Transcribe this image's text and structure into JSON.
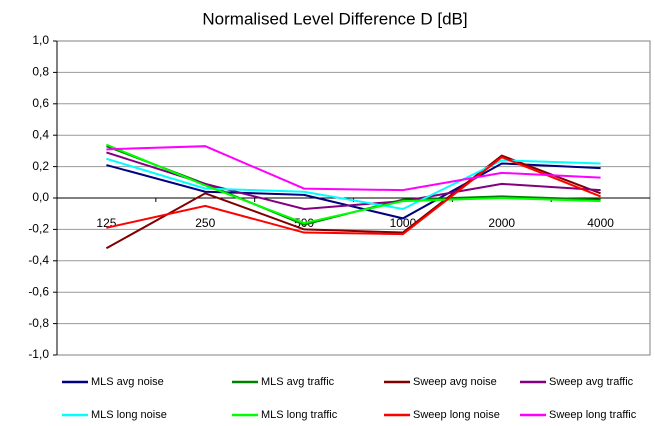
{
  "chart_data": {
    "type": "line",
    "title": "Normalised Level Difference D [dB]",
    "categories": [
      "125",
      "250",
      "500",
      "1000",
      "2000",
      "4000"
    ],
    "ylim": [
      -1.0,
      1.0
    ],
    "yticks": [
      {
        "value": -1.0,
        "label": "-1,0"
      },
      {
        "value": -0.8,
        "label": "-0,8"
      },
      {
        "value": -0.6,
        "label": "-0,6"
      },
      {
        "value": -0.4,
        "label": "-0,4"
      },
      {
        "value": -0.2,
        "label": "-0,2"
      },
      {
        "value": 0.0,
        "label": "0,0"
      },
      {
        "value": 0.2,
        "label": "0,2"
      },
      {
        "value": 0.4,
        "label": "0,4"
      },
      {
        "value": 0.6,
        "label": "0,6"
      },
      {
        "value": 0.8,
        "label": "0,8"
      },
      {
        "value": 1.0,
        "label": "1,0"
      }
    ],
    "grid": true,
    "series": [
      {
        "name": "MLS avg noise",
        "color": "#000080",
        "values": [
          0.21,
          0.04,
          0.02,
          -0.13,
          0.22,
          0.19
        ]
      },
      {
        "name": "MLS avg traffic",
        "color": "#008000",
        "values": [
          0.33,
          0.09,
          -0.17,
          -0.01,
          0.01,
          -0.01
        ]
      },
      {
        "name": "Sweep avg noise",
        "color": "#800000",
        "values": [
          -0.32,
          0.03,
          -0.2,
          -0.22,
          0.27,
          0.03
        ]
      },
      {
        "name": "Sweep avg traffic",
        "color": "#800080",
        "values": [
          0.29,
          0.09,
          -0.07,
          -0.02,
          0.09,
          0.05
        ]
      },
      {
        "name": "MLS long noise",
        "color": "#00ffff",
        "values": [
          0.25,
          0.06,
          0.04,
          -0.07,
          0.24,
          0.22
        ]
      },
      {
        "name": "MLS long traffic",
        "color": "#00ff00",
        "values": [
          0.34,
          0.08,
          -0.16,
          -0.02,
          0.0,
          -0.02
        ]
      },
      {
        "name": "Sweep long noise",
        "color": "#ff0000",
        "values": [
          -0.19,
          -0.05,
          -0.22,
          -0.23,
          0.26,
          0.01
        ]
      },
      {
        "name": "Sweep long traffic",
        "color": "#ff00ff",
        "values": [
          0.31,
          0.33,
          0.06,
          0.05,
          0.16,
          0.13
        ]
      }
    ]
  }
}
